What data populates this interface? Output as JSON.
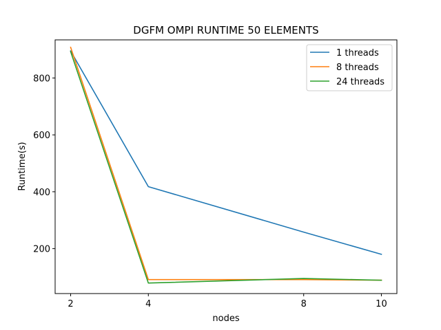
{
  "chart_data": {
    "type": "line",
    "title": "DGFM OMPI RUNTIME 50 ELEMENTS",
    "xlabel": "nodes",
    "ylabel": "Runtime(s)",
    "x": [
      2,
      4,
      8,
      10
    ],
    "x_ticks": [
      2,
      4,
      8,
      10
    ],
    "y_ticks": [
      200,
      400,
      600,
      800
    ],
    "xlim": [
      1.6,
      10.4
    ],
    "ylim": [
      42,
      934
    ],
    "grid": false,
    "legend_position": "top-right",
    "series": [
      {
        "name": "1 threads",
        "color": "#1f77b4",
        "values": [
          895,
          418,
          258,
          180
        ]
      },
      {
        "name": "8 threads",
        "color": "#ff7f0e",
        "values": [
          908,
          91,
          91,
          89
        ]
      },
      {
        "name": "24 threads",
        "color": "#2ca02c",
        "values": [
          893,
          79,
          95,
          89
        ]
      }
    ]
  }
}
